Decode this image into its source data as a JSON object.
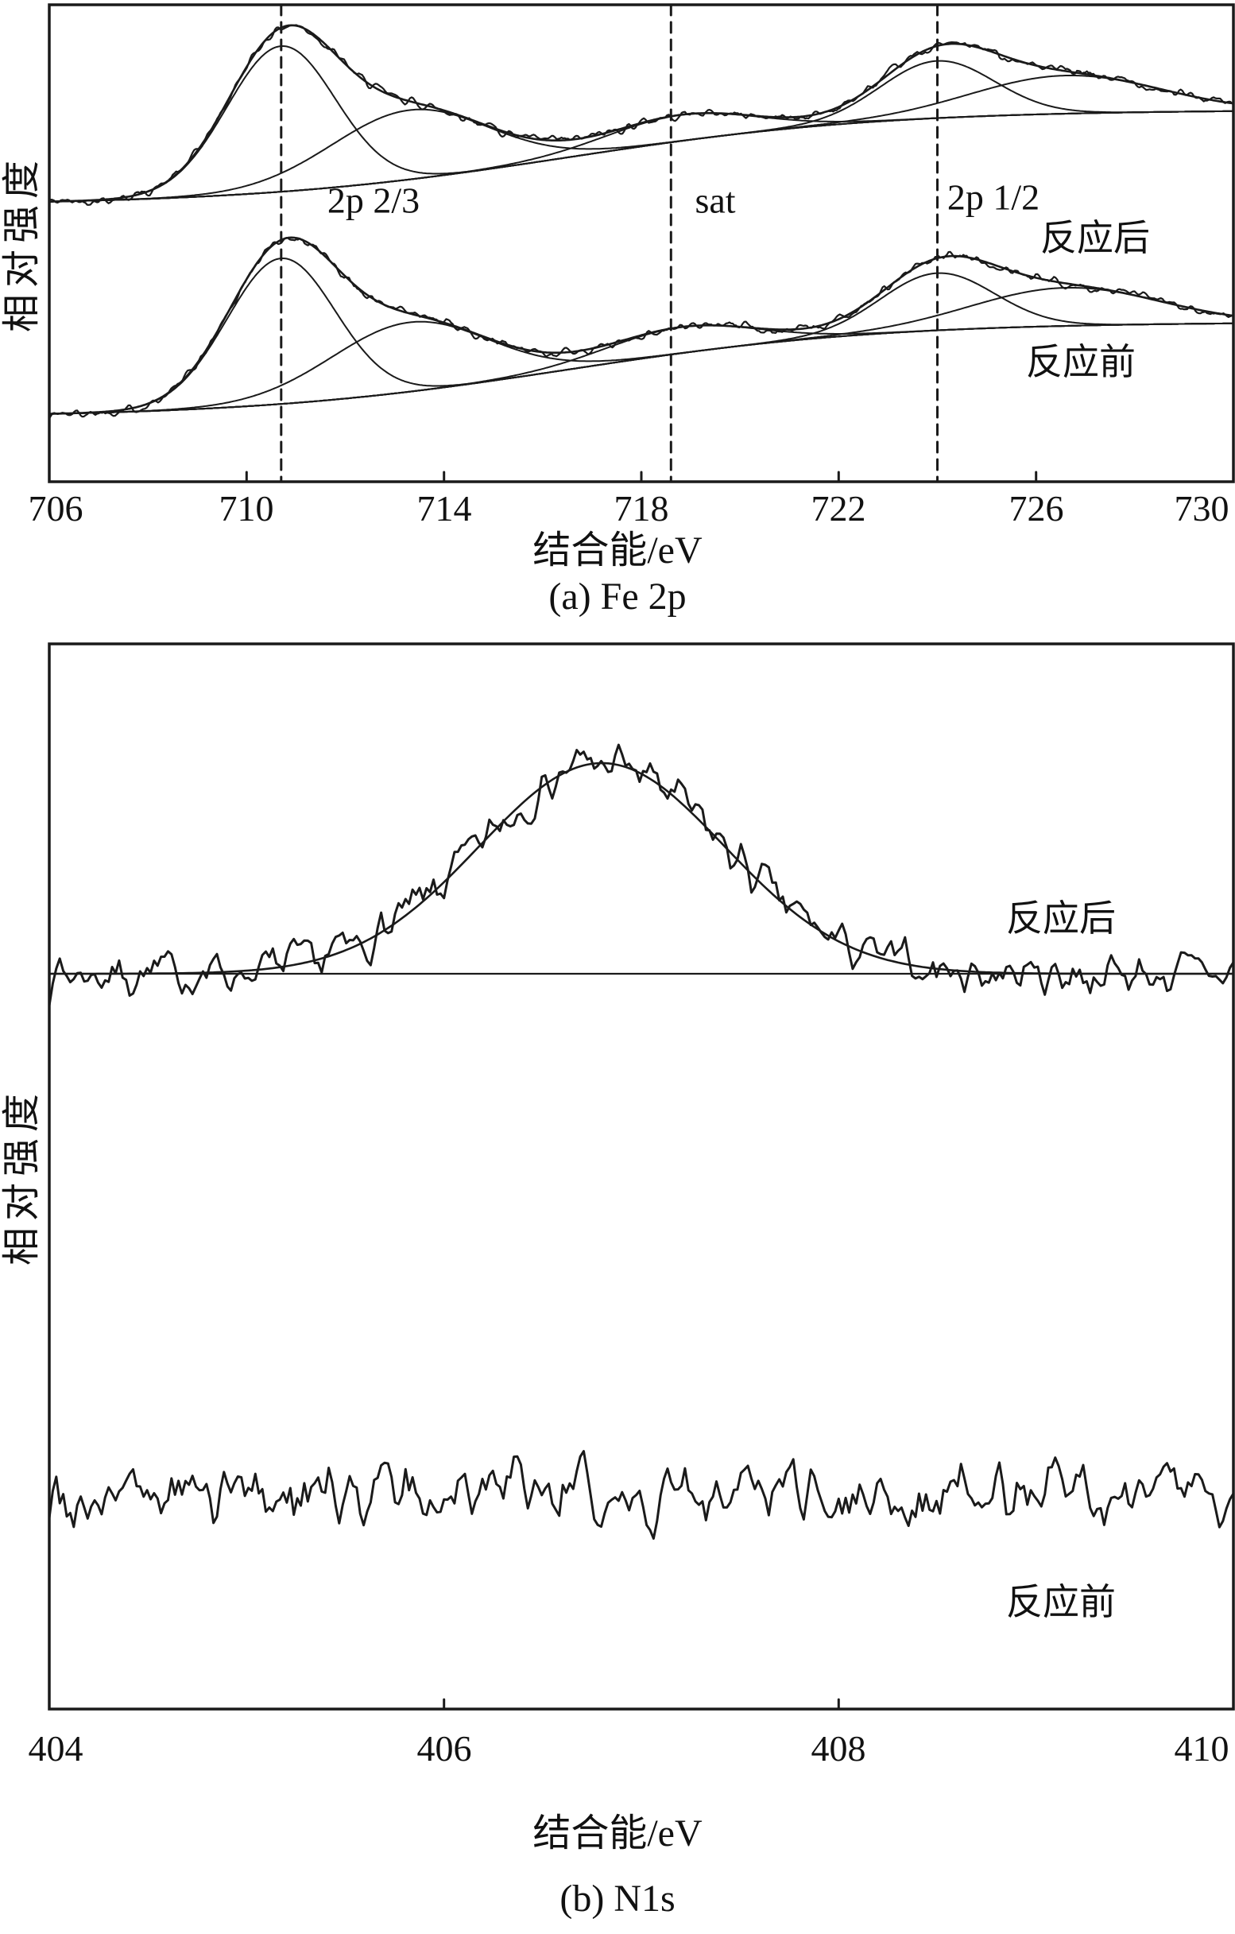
{
  "figure": {
    "background": "#ffffff",
    "line_color": "#1a1a1a"
  },
  "chart_data": [
    {
      "id": "fe2p",
      "type": "line",
      "caption": "(a) Fe 2p",
      "xlabel": "结合能/eV",
      "ylabel": "相对强度",
      "xlim": [
        706,
        730
      ],
      "x_ticks": [
        706,
        710,
        714,
        718,
        722,
        726,
        730
      ],
      "grid": false,
      "legend_position": "none",
      "dashed_guides": [
        {
          "x": 710.7,
          "label": "2p 2/3"
        },
        {
          "x": 718.6,
          "label": "sat"
        },
        {
          "x": 724.0,
          "label": "2p 1/2"
        }
      ],
      "series": [
        {
          "name": "反应后"
        },
        {
          "name": "反应前"
        }
      ],
      "background_model": {
        "shape": "sigmoid",
        "amplitude": 0.55,
        "center": 716.5,
        "width": 3.2
      },
      "peaks": [
        {
          "center": 710.7,
          "sigma": 1.1,
          "amplitude": 0.84
        },
        {
          "center": 713.3,
          "sigma": 1.6,
          "amplitude": 0.4
        },
        {
          "center": 718.8,
          "sigma": 1.5,
          "amplitude": 0.15
        },
        {
          "center": 724.0,
          "sigma": 1.15,
          "amplitude": 0.33
        },
        {
          "center": 726.6,
          "sigma": 1.9,
          "amplitude": 0.22
        }
      ],
      "noise_amplitude": 0.012
    },
    {
      "id": "n1s",
      "type": "line",
      "caption": "(b) N1s",
      "xlabel": "结合能/eV",
      "ylabel": "相对强度",
      "xlim": [
        404,
        410
      ],
      "x_ticks": [
        404,
        406,
        408,
        410
      ],
      "grid": false,
      "legend_position": "none",
      "series": [
        {
          "name": "反应后",
          "fit_peak": {
            "center": 406.8,
            "sigma": 0.62,
            "amplitude": 1.0
          },
          "baseline": true,
          "noise_amplitude": 0.055
        },
        {
          "name": "反应前",
          "fit_peak": null,
          "baseline": false,
          "noise_amplitude": 0.075
        }
      ]
    }
  ]
}
